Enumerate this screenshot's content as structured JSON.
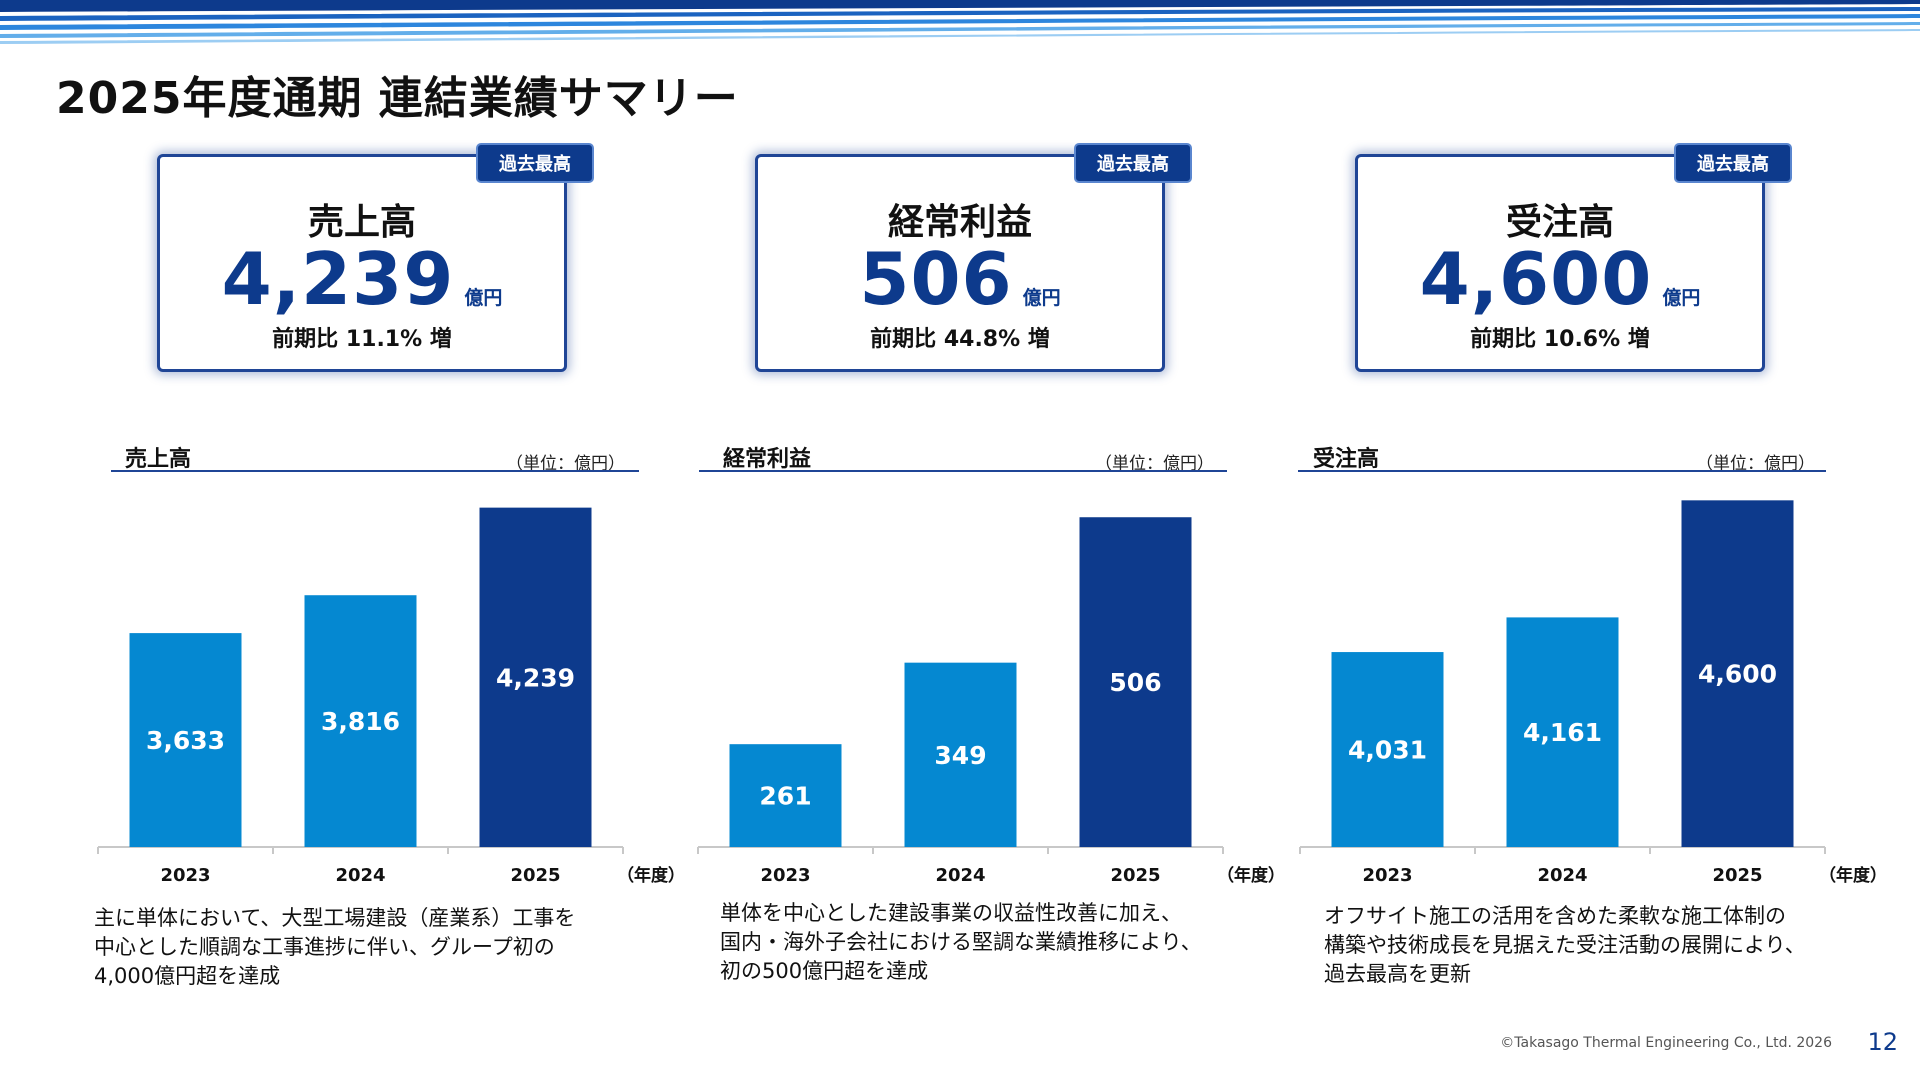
{
  "title": "2025年度通期 連結業績サマリー",
  "colors": {
    "brand": "#0d3a8c",
    "bar_light": "#0588d1",
    "bar_dark": "#0d3a8c",
    "rule": "#1f4596"
  },
  "kpis": [
    {
      "badge": "過去最高",
      "label": "売上高",
      "value": "4,239",
      "unit": "億円",
      "growth": "前期比 11.1% 増"
    },
    {
      "badge": "過去最高",
      "label": "経常利益",
      "value": "506",
      "unit": "億円",
      "growth": "前期比 44.8% 増"
    },
    {
      "badge": "過去最高",
      "label": "受注高",
      "value": "4,600",
      "unit": "億円",
      "growth": "前期比 10.6% 増"
    }
  ],
  "chart_data": [
    {
      "type": "bar",
      "title": "売上高",
      "unit": "（単位：億円）",
      "xlabel": "（年度）",
      "categories": [
        "2023",
        "2024",
        "2025"
      ],
      "values": [
        3633,
        3816,
        4239
      ],
      "value_labels": [
        "3,633",
        "3,816",
        "4,239"
      ],
      "ylim": [
        2600,
        4300
      ],
      "grid": false,
      "highlight_index": 2
    },
    {
      "type": "bar",
      "title": "経常利益",
      "unit": "（単位：億円）",
      "xlabel": "（年度）",
      "categories": [
        "2023",
        "2024",
        "2025"
      ],
      "values": [
        261,
        349,
        506
      ],
      "value_labels": [
        "261",
        "349",
        "506"
      ],
      "ylim": [
        150,
        530
      ],
      "grid": false,
      "highlight_index": 2
    },
    {
      "type": "bar",
      "title": "受注高",
      "unit": "（単位：億円）",
      "xlabel": "（年度）",
      "categories": [
        "2023",
        "2024",
        "2025"
      ],
      "values": [
        4031,
        4161,
        4600
      ],
      "value_labels": [
        "4,031",
        "4,161",
        "4,600"
      ],
      "ylim": [
        3300,
        4620
      ],
      "grid": false,
      "highlight_index": 2
    }
  ],
  "descriptions": [
    [
      "主に単体において、大型工場建設（産業系）工事を",
      "中心とした順調な工事進捗に伴い、グループ初の",
      "4,000億円超を達成"
    ],
    [
      "単体を中心とした建設事業の収益性改善に加え、",
      "国内・海外子会社における堅調な業績推移により、",
      "初の500億円超を達成"
    ],
    [
      "オフサイト施工の活用を含めた柔軟な施工体制の",
      "構築や技術成長を見据えた受注活動の展開により、",
      "過去最高を更新"
    ]
  ],
  "footer": {
    "copyright": "©Takasago Thermal Engineering Co., Ltd. 2026",
    "page_number": "12"
  }
}
